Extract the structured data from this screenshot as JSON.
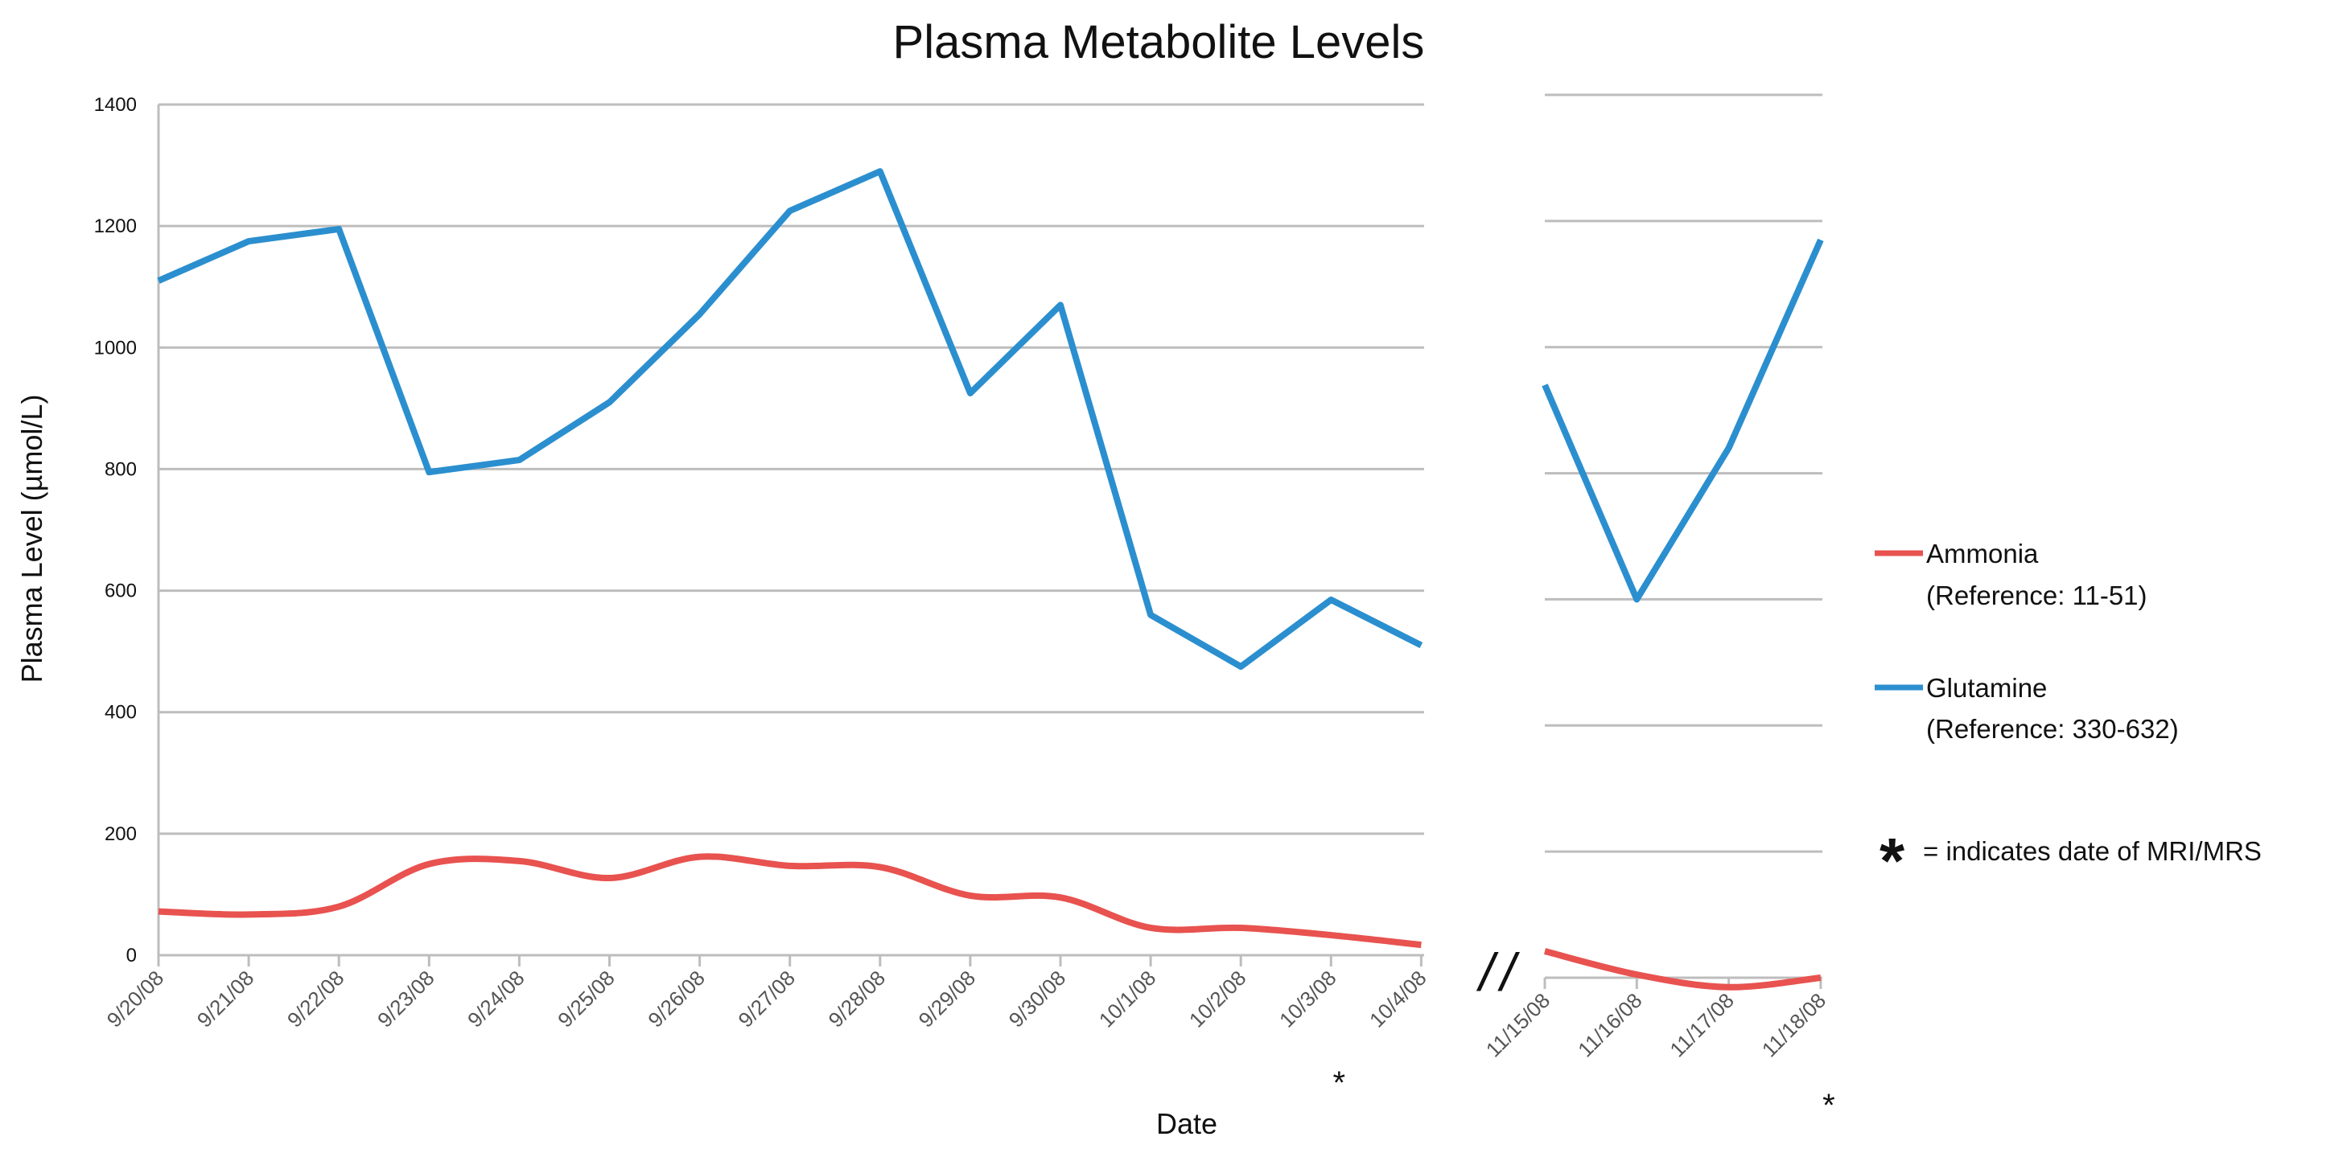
{
  "chart_data": {
    "type": "line",
    "title": "Plasma Metabolite Levels",
    "xlabel": "Date",
    "ylabel": "Plasma Level (µmol/L)",
    "ylim": [
      0,
      1400
    ],
    "yticks": [
      0,
      200,
      400,
      600,
      800,
      1000,
      1200,
      1400
    ],
    "grid": true,
    "legend_position": "right",
    "segments": [
      {
        "categories": [
          "9/20/08",
          "9/21/08",
          "9/22/08",
          "9/23/08",
          "9/24/08",
          "9/25/08",
          "9/26/08",
          "9/27/08",
          "9/28/08",
          "9/29/08",
          "9/30/08",
          "10/1/08",
          "10/2/08",
          "10/3/08",
          "10/4/08"
        ],
        "series": [
          {
            "name": "Ammonia",
            "values": [
              72,
              67,
              80,
              150,
              155,
              127,
              162,
              147,
              145,
              98,
              95,
              45,
              45,
              33,
              17
            ]
          },
          {
            "name": "Glutamine",
            "values": [
              1110,
              1175,
              1195,
              795,
              815,
              910,
              1055,
              1225,
              1290,
              925,
              1070,
              560,
              475,
              585,
              510
            ]
          }
        ]
      },
      {
        "categories": [
          "11/15/08",
          "11/16/08",
          "11/17/08",
          "11/18/08"
        ],
        "series": [
          {
            "name": "Ammonia",
            "values": [
              42,
              5,
              -15,
              0
            ]
          },
          {
            "name": "Glutamine",
            "values": [
              940,
              600,
              840,
              1170
            ]
          }
        ]
      }
    ],
    "series_styles": [
      {
        "name": "Ammonia",
        "color": "#e8524f",
        "reference": "(Reference: 11-51)"
      },
      {
        "name": "Glutamine",
        "color": "#2b8fcf",
        "reference": "(Reference: 330-632)"
      }
    ],
    "axis_break": "//",
    "mri_dates": [
      "10/3/08",
      "11/18/08"
    ],
    "mri_marker": "*",
    "note": "= indicates date of MRI/MRS"
  }
}
